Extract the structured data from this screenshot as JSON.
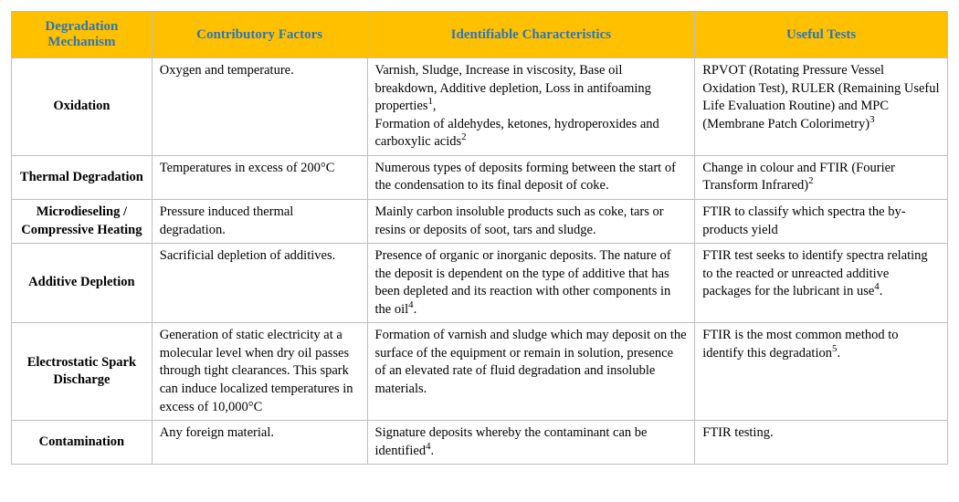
{
  "table": {
    "header": {
      "bg_color": "#ffc000",
      "text_color": "#2e75b6",
      "font_weight": "bold",
      "font_size": 15,
      "columns": [
        "Degradation Mechanism",
        "Contributory Factors",
        "Identifiable Characteristics",
        "Useful Tests"
      ]
    },
    "column_widths": [
      "15%",
      "23%",
      "35%",
      "27%"
    ],
    "border_color": "#bfbfbf",
    "body_font_size": 14.5,
    "body_text_color": "#000000",
    "rows": [
      {
        "mechanism": "Oxidation",
        "factors": "Oxygen and temperature.",
        "characteristics_html": "Varnish, Sludge, Increase in viscosity, Base oil breakdown, Additive depletion, Loss in antifoaming properties<sup>1</sup>,<br>Formation of aldehydes, ketones, hydroperoxides and carboxylic acids<sup>2</sup>",
        "tests_html": "RPVOT (Rotating Pressure Vessel Oxidation Test), RULER (Remaining Useful Life Evaluation Routine) and MPC (Membrane Patch Colorimetry)<sup>3</sup>"
      },
      {
        "mechanism": "Thermal Degradation",
        "factors": "Temperatures in excess of 200°C",
        "characteristics_html": "Numerous types of deposits forming between the start of the condensation to its final deposit of coke.",
        "tests_html": "Change in colour and FTIR (Fourier Transform Infrared)<sup>2</sup>"
      },
      {
        "mechanism": "Microdieseling / Compressive Heating",
        "factors": "Pressure induced thermal degradation.",
        "characteristics_html": "Mainly carbon insoluble products such as coke, tars or resins or deposits of soot, tars and sludge.",
        "tests_html": "FTIR to classify which spectra the by-products yield"
      },
      {
        "mechanism": "Additive Depletion",
        "factors": "Sacrificial depletion of additives.",
        "characteristics_html": "Presence of organic or inorganic deposits. The nature of the deposit is dependent on the type of additive that has been depleted and its reaction with other components in the oil<sup>4</sup>.",
        "tests_html": "FTIR test seeks to identify spectra relating to the reacted or unreacted additive packages for the lubricant in use<sup>4</sup>."
      },
      {
        "mechanism": "Electrostatic Spark Discharge",
        "factors": "Generation of static electricity at a molecular level when dry oil passes through tight clearances. This spark can induce localized temperatures in excess of 10,000°C",
        "characteristics_html": "Formation of varnish and sludge which may deposit on the surface of the equipment or remain in solution, presence of an elevated rate of fluid degradation and insoluble materials.",
        "tests_html": "FTIR is the most common method to identify this degradation<sup>5</sup>."
      },
      {
        "mechanism": "Contamination",
        "factors": "Any foreign material.",
        "characteristics_html": "Signature deposits whereby the contaminant can be identified<sup>4</sup>.",
        "tests_html": "FTIR testing."
      }
    ]
  }
}
